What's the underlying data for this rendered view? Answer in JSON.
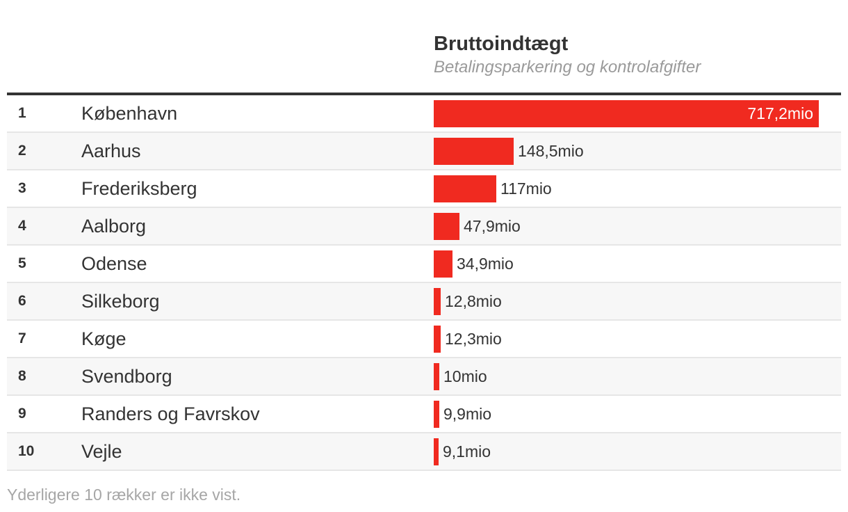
{
  "header": {
    "column_title": "Bruttoindtægt",
    "column_subtitle": "Betalingsparkering og kontrolafgifter"
  },
  "chart_data": {
    "type": "bar",
    "orientation": "horizontal",
    "title": "Bruttoindtægt",
    "subtitle": "Betalingsparkering og kontrolafgifter",
    "xlim": [
      0,
      717.2
    ],
    "unit": "mio",
    "rows": [
      {
        "rank": "1",
        "name": "København",
        "value": 717.2,
        "label": "717,2mio"
      },
      {
        "rank": "2",
        "name": "Aarhus",
        "value": 148.5,
        "label": "148,5mio"
      },
      {
        "rank": "3",
        "name": "Frederiksberg",
        "value": 117,
        "label": "117mio"
      },
      {
        "rank": "4",
        "name": "Aalborg",
        "value": 47.9,
        "label": "47,9mio"
      },
      {
        "rank": "5",
        "name": "Odense",
        "value": 34.9,
        "label": "34,9mio"
      },
      {
        "rank": "6",
        "name": "Silkeborg",
        "value": 12.8,
        "label": "12,8mio"
      },
      {
        "rank": "7",
        "name": "Køge",
        "value": 12.3,
        "label": "12,3mio"
      },
      {
        "rank": "8",
        "name": "Svendborg",
        "value": 10,
        "label": "10mio"
      },
      {
        "rank": "9",
        "name": "Randers og Favrskov",
        "value": 9.9,
        "label": "9,9mio"
      },
      {
        "rank": "10",
        "name": "Vejle",
        "value": 9.1,
        "label": "9,1mio"
      }
    ],
    "bar_color": "#f02a20"
  },
  "footnote": "Yderligere 10 rækker er ikke vist."
}
